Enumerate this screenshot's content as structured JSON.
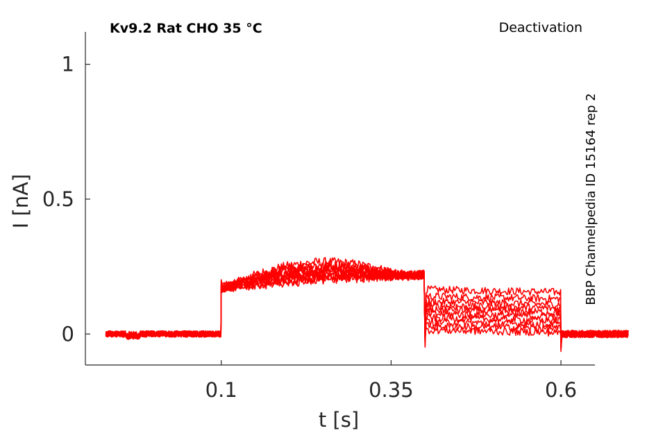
{
  "chart_data": {
    "type": "line",
    "title": "Kv9.2  Rat  CHO  35 °C",
    "protocol": "Deactivation",
    "side_label": "BBP Channelpedia ID 15164 rep 2",
    "xlabel": "t [s]",
    "ylabel": "I [nA]",
    "xlim": [
      -0.1,
      0.65
    ],
    "ylim": [
      -0.115,
      1.12
    ],
    "xticks": [
      0.1,
      0.35,
      0.6
    ],
    "xtick_labels": [
      "0.1",
      "0.35",
      "0.6"
    ],
    "yticks": [
      0,
      0.5,
      1
    ],
    "ytick_labels": [
      "0",
      "0.5",
      "1"
    ],
    "grid": false,
    "color": "#ff0000",
    "segments": {
      "baseline": {
        "t_start": -0.07,
        "t_end": 0.1,
        "level": 0.0
      },
      "prepulse": {
        "t_start": 0.1,
        "t_end": 0.4,
        "level_start": 0.17,
        "level_end": 0.22
      },
      "test": {
        "t_start": 0.4,
        "t_end": 0.6
      },
      "tail": {
        "t_start": 0.6,
        "t_end": 0.7,
        "level": 0.0
      }
    },
    "series": [
      {
        "test_level": 0.165,
        "prepulse_bump": 0.12
      },
      {
        "test_level": 0.14,
        "prepulse_bump": 0.1
      },
      {
        "test_level": 0.12,
        "prepulse_bump": 0.09
      },
      {
        "test_level": 0.105,
        "prepulse_bump": 0.08
      },
      {
        "test_level": 0.09,
        "prepulse_bump": 0.06
      },
      {
        "test_level": 0.075,
        "prepulse_bump": 0.05
      },
      {
        "test_level": 0.06,
        "prepulse_bump": 0.04
      },
      {
        "test_level": 0.045,
        "prepulse_bump": 0.03
      },
      {
        "test_level": 0.03,
        "prepulse_bump": 0.02
      },
      {
        "test_level": 0.015,
        "prepulse_bump": 0.01
      }
    ]
  }
}
